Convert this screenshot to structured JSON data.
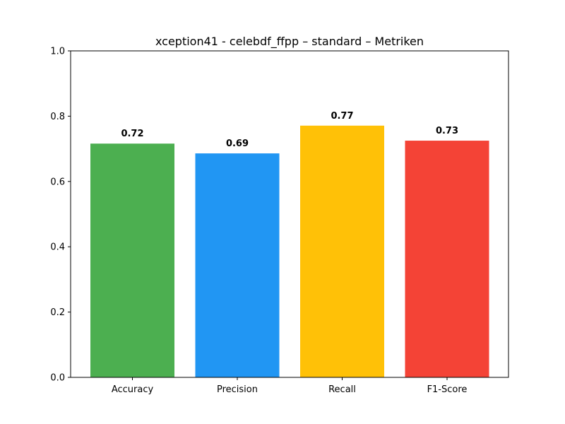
{
  "chart_data": {
    "type": "bar",
    "title": "xception41 - celebdf_ffpp – standard – Metriken",
    "xlabel": "",
    "ylabel": "",
    "categories": [
      "Accuracy",
      "Precision",
      "Recall",
      "F1-Score"
    ],
    "values": [
      0.716,
      0.686,
      0.771,
      0.725
    ],
    "value_labels": [
      "0.72",
      "0.69",
      "0.77",
      "0.73"
    ],
    "colors": [
      "#4caf50",
      "#2196f3",
      "#ffc107",
      "#f44336"
    ],
    "ylim": [
      0,
      1.0
    ],
    "yticks": [
      0.0,
      0.2,
      0.4,
      0.6,
      0.8,
      1.0
    ],
    "ytick_labels": [
      "0.0",
      "0.2",
      "0.4",
      "0.6",
      "0.8",
      "1.0"
    ],
    "grid": false
  }
}
